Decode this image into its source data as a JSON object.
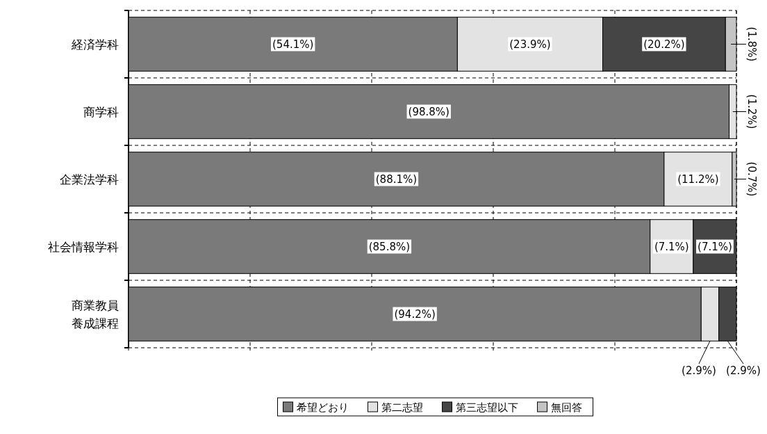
{
  "chart_data": {
    "type": "bar",
    "orientation": "horizontal",
    "stacked": true,
    "categories": [
      "経済学科",
      "商学科",
      "企業法学科",
      "社会情報学科",
      "商業教員養成課程"
    ],
    "series": [
      {
        "name": "希望どおり",
        "color": "#7a7a7a",
        "values": [
          54.1,
          98.8,
          88.1,
          85.8,
          94.2
        ],
        "value_labels": [
          "(54.1%)",
          "(98.8%)",
          "(88.1%)",
          "(85.8%)",
          "(94.2%)"
        ]
      },
      {
        "name": "第二志望",
        "color": "#e3e3e3",
        "values": [
          23.9,
          1.2,
          11.2,
          7.1,
          2.9
        ],
        "value_labels": [
          "(23.9%)",
          "(1.2%)",
          "(11.2%)",
          "(7.1%)",
          "(2.9%)"
        ]
      },
      {
        "name": "第三志望以下",
        "color": "#454545",
        "values": [
          20.2,
          null,
          null,
          7.1,
          2.9
        ],
        "value_labels": [
          "(20.2%)",
          null,
          null,
          "(7.1%)",
          "(2.9%)"
        ]
      },
      {
        "name": "無回答",
        "color": "#c4c4c4",
        "values": [
          1.8,
          null,
          0.7,
          null,
          null
        ],
        "value_labels": [
          "(1.8%)",
          null,
          "(0.7%)",
          null,
          null
        ]
      }
    ],
    "xlim": [
      0,
      100
    ],
    "xticks": [
      {
        "value": 0,
        "label": null
      },
      {
        "value": 20,
        "label": null
      },
      {
        "value": 40,
        "label": null
      },
      {
        "value": 60,
        "label": null
      },
      {
        "value": 80,
        "label": null
      },
      {
        "value": 100,
        "label": null
      }
    ],
    "tick_labels": "y",
    "grid": "x",
    "legend": "bottom"
  }
}
